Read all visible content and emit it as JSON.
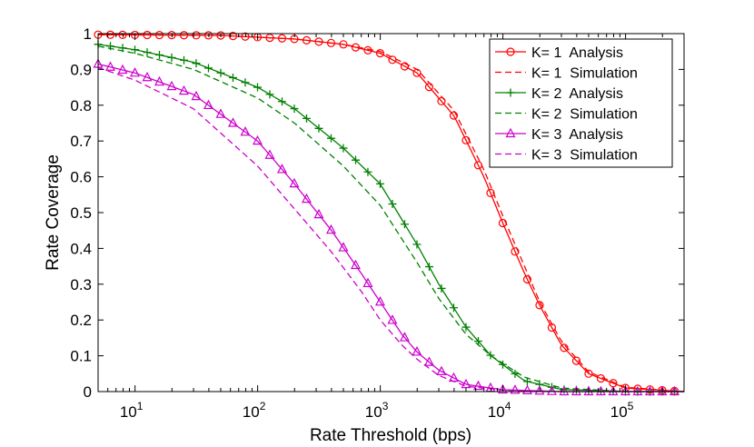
{
  "chart_data": {
    "type": "line",
    "title": "",
    "xlabel": "Rate Threshold (bps)",
    "ylabel": "Rate Coverage",
    "xscale": "log",
    "xlim": [
      5,
      300000
    ],
    "ylim": [
      0,
      1
    ],
    "grid": false,
    "legend_position": "top-right",
    "xticks": [
      {
        "value": 10,
        "base": "10",
        "exp": "1"
      },
      {
        "value": 100,
        "base": "10",
        "exp": "2"
      },
      {
        "value": 1000,
        "base": "10",
        "exp": "3"
      },
      {
        "value": 10000,
        "base": "10",
        "exp": "4"
      },
      {
        "value": 100000,
        "base": "10",
        "exp": "5"
      }
    ],
    "yticks": [
      {
        "value": 0,
        "label": "0"
      },
      {
        "value": 0.1,
        "label": "0.1"
      },
      {
        "value": 0.2,
        "label": "0.2"
      },
      {
        "value": 0.3,
        "label": "0.3"
      },
      {
        "value": 0.4,
        "label": "0.4"
      },
      {
        "value": 0.5,
        "label": "0.5"
      },
      {
        "value": 0.6,
        "label": "0.6"
      },
      {
        "value": 0.7,
        "label": "0.7"
      },
      {
        "value": 0.8,
        "label": "0.8"
      },
      {
        "value": 0.9,
        "label": "0.9"
      },
      {
        "value": 1,
        "label": "1"
      }
    ],
    "series": [
      {
        "name": "K= 1  Analysis",
        "color": "#ff0000",
        "dash": "solid",
        "marker": "circle",
        "x": [
          5,
          50,
          200,
          500,
          1000,
          2000,
          4000,
          7000,
          10000,
          15000,
          20000,
          30000,
          50000,
          100000,
          300000
        ],
        "y": [
          0.997,
          0.995,
          0.985,
          0.97,
          0.945,
          0.89,
          0.77,
          0.6,
          0.47,
          0.33,
          0.24,
          0.13,
          0.05,
          0.01,
          0.0
        ]
      },
      {
        "name": "K= 1  Simulation",
        "color": "#ff0000",
        "dash": "dashed",
        "marker": "none",
        "x": [
          5,
          50,
          200,
          500,
          1000,
          2000,
          4000,
          7000,
          10000,
          15000,
          20000,
          30000,
          50000,
          100000,
          300000
        ],
        "y": [
          0.997,
          0.995,
          0.985,
          0.97,
          0.95,
          0.9,
          0.785,
          0.62,
          0.49,
          0.35,
          0.25,
          0.14,
          0.055,
          0.012,
          0.0
        ]
      },
      {
        "name": "K= 2  Analysis",
        "color": "#008000",
        "dash": "solid",
        "marker": "plus",
        "x": [
          5,
          10,
          30,
          100,
          200,
          500,
          1000,
          2000,
          3000,
          5000,
          8000,
          15000,
          30000,
          100000,
          300000
        ],
        "y": [
          0.97,
          0.955,
          0.92,
          0.85,
          0.79,
          0.68,
          0.58,
          0.41,
          0.3,
          0.18,
          0.1,
          0.03,
          0.006,
          0.0,
          0.0
        ]
      },
      {
        "name": "K= 2  Simulation",
        "color": "#008000",
        "dash": "dashed",
        "marker": "none",
        "x": [
          5,
          10,
          30,
          100,
          200,
          500,
          1000,
          2000,
          3000,
          5000,
          8000,
          15000,
          30000,
          100000,
          300000
        ],
        "y": [
          0.965,
          0.945,
          0.9,
          0.82,
          0.75,
          0.63,
          0.52,
          0.36,
          0.26,
          0.16,
          0.1,
          0.04,
          0.01,
          0.0,
          0.0
        ]
      },
      {
        "name": "K= 3  Analysis",
        "color": "#cc00cc",
        "dash": "solid",
        "marker": "triangle",
        "x": [
          5,
          10,
          30,
          100,
          200,
          400,
          700,
          1000,
          1500,
          2000,
          3000,
          5000,
          10000,
          30000,
          300000
        ],
        "y": [
          0.915,
          0.89,
          0.83,
          0.7,
          0.58,
          0.45,
          0.33,
          0.25,
          0.16,
          0.11,
          0.06,
          0.02,
          0.005,
          0.0,
          0.0
        ]
      },
      {
        "name": "K= 3  Simulation",
        "color": "#cc00cc",
        "dash": "dashed",
        "marker": "none",
        "x": [
          5,
          10,
          30,
          100,
          200,
          400,
          700,
          1000,
          1500,
          2000,
          3000,
          5000,
          10000,
          30000,
          300000
        ],
        "y": [
          0.905,
          0.87,
          0.79,
          0.63,
          0.51,
          0.39,
          0.28,
          0.2,
          0.13,
          0.09,
          0.045,
          0.015,
          0.004,
          0.0,
          0.0
        ]
      }
    ]
  }
}
